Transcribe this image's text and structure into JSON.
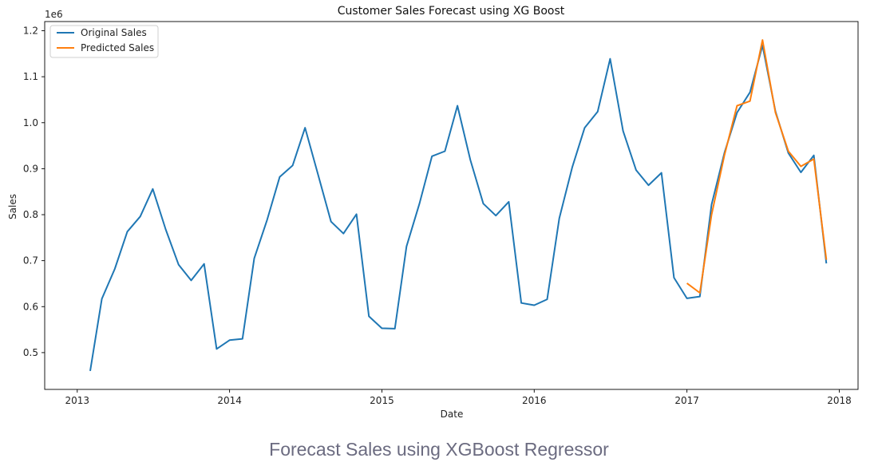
{
  "caption": "Forecast Sales using XGBoost Regressor",
  "chart_data": {
    "type": "line",
    "title": "Customer Sales Forecast using XG Boost",
    "xlabel": "Date",
    "ylabel": "Sales",
    "y_offset_text": "1e6",
    "xlim": [
      "2012-10-15",
      "2018-02-15"
    ],
    "ylim": [
      0.42,
      1.22
    ],
    "x_ticks": [
      "2013",
      "2014",
      "2015",
      "2016",
      "2017",
      "2018"
    ],
    "y_ticks": [
      "0.5",
      "0.6",
      "0.7",
      "0.8",
      "0.9",
      "1.0",
      "1.1",
      "1.2"
    ],
    "legend_position": "top-left",
    "grid": false,
    "series": [
      {
        "name": "Original Sales",
        "color": "#1f77b4",
        "x": [
          "2013-02-01",
          "2013-03-01",
          "2013-04-01",
          "2013-05-01",
          "2013-06-01",
          "2013-07-01",
          "2013-08-01",
          "2013-09-01",
          "2013-10-01",
          "2013-11-01",
          "2013-12-01",
          "2014-01-01",
          "2014-02-01",
          "2014-03-01",
          "2014-04-01",
          "2014-05-01",
          "2014-06-01",
          "2014-07-01",
          "2014-08-01",
          "2014-09-01",
          "2014-10-01",
          "2014-11-01",
          "2014-12-01",
          "2015-01-01",
          "2015-02-01",
          "2015-03-01",
          "2015-04-01",
          "2015-05-01",
          "2015-06-01",
          "2015-07-01",
          "2015-08-01",
          "2015-09-01",
          "2015-10-01",
          "2015-11-01",
          "2015-12-01",
          "2016-01-01",
          "2016-02-01",
          "2016-03-01",
          "2016-04-01",
          "2016-05-01",
          "2016-06-01",
          "2016-07-01",
          "2016-08-01",
          "2016-09-01",
          "2016-10-01",
          "2016-11-01",
          "2016-12-01",
          "2017-01-01",
          "2017-02-01",
          "2017-03-01",
          "2017-04-01",
          "2017-05-01",
          "2017-06-01",
          "2017-07-01",
          "2017-08-01",
          "2017-09-01",
          "2017-10-01",
          "2017-11-01",
          "2017-12-01"
        ],
        "values": [
          0.46,
          0.617,
          0.682,
          0.763,
          0.796,
          0.856,
          0.768,
          0.691,
          0.657,
          0.693,
          0.508,
          0.527,
          0.53,
          0.705,
          0.789,
          0.882,
          0.907,
          0.989,
          0.887,
          0.785,
          0.759,
          0.801,
          0.579,
          0.553,
          0.552,
          0.731,
          0.824,
          0.927,
          0.938,
          1.037,
          0.919,
          0.824,
          0.798,
          0.828,
          0.608,
          0.603,
          0.616,
          0.792,
          0.903,
          0.989,
          1.024,
          1.139,
          0.982,
          0.897,
          0.864,
          0.891,
          0.663,
          0.618,
          0.622,
          0.822,
          0.935,
          1.022,
          1.066,
          1.168,
          1.025,
          0.934,
          0.892,
          0.929,
          0.694
        ]
      },
      {
        "name": "Predicted Sales",
        "color": "#ff7f0e",
        "x": [
          "2017-01-01",
          "2017-02-01",
          "2017-03-01",
          "2017-04-01",
          "2017-05-01",
          "2017-06-01",
          "2017-07-01",
          "2017-08-01",
          "2017-09-01",
          "2017-10-01",
          "2017-11-01",
          "2017-12-01"
        ],
        "values": [
          0.651,
          0.63,
          0.8,
          0.93,
          1.037,
          1.047,
          1.18,
          1.022,
          0.938,
          0.905,
          0.921,
          0.702
        ]
      }
    ]
  }
}
